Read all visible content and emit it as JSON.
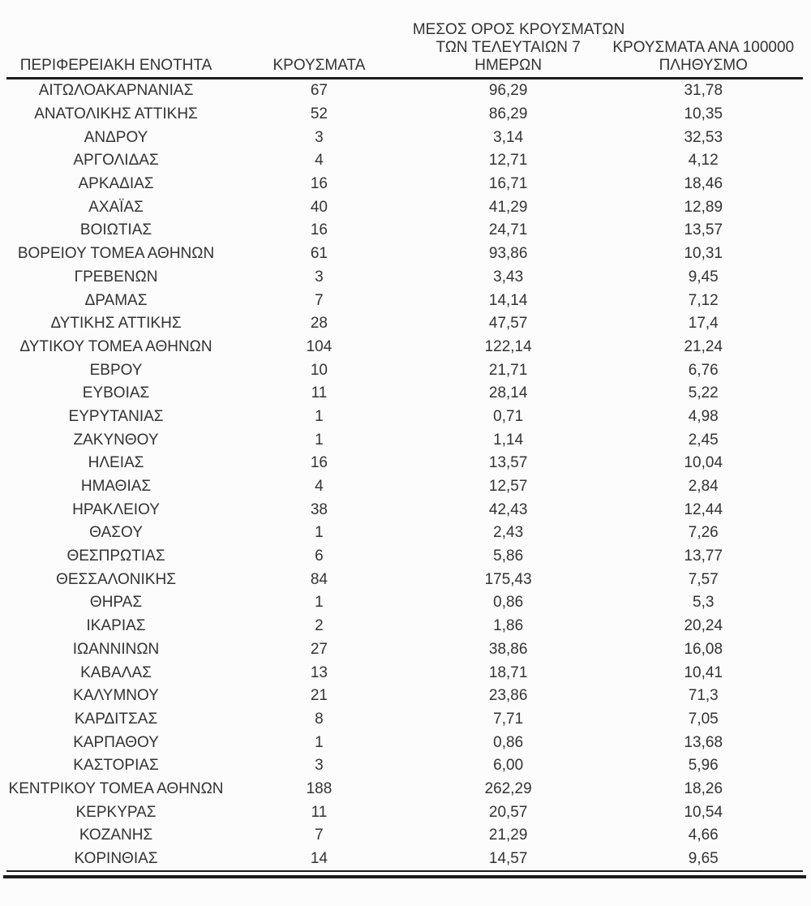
{
  "colors": {
    "background": "#fcfcfc",
    "text": "#333333",
    "rule_line": "#1c1c1c"
  },
  "header": {
    "col1": "ΠΕΡΙΦΕΡΕΙΑΚΗ ΕΝΟΤΗΤΑ",
    "col2": "ΚΡΟΥΣΜΑΤΑ",
    "col3_lines": [
      "ΜΕΣΟΣ ΟΡΟΣ ΚΡΟΥΣΜΑΤΩΝ",
      "ΤΩΝ ΤΕΛΕΥΤΑΙΩΝ 7",
      "ΗΜΕΡΩΝ"
    ],
    "col4_lines": [
      "ΚΡΟΥΣΜΑΤΑ ΑΝΑ 100000",
      "ΠΛΗΘΥΣΜΟ"
    ]
  },
  "chart_data": {
    "type": "table",
    "title": "",
    "columns": [
      "ΠΕΡΙΦΕΡΕΙΑΚΗ ΕΝΟΤΗΤΑ",
      "ΚΡΟΥΣΜΑΤΑ",
      "ΜΕΣΟΣ ΟΡΟΣ ΚΡΟΥΣΜΑΤΩΝ ΤΩΝ ΤΕΛΕΥΤΑΙΩΝ 7 ΗΜΕΡΩΝ",
      "ΚΡΟΥΣΜΑΤΑ ΑΝΑ 100000 ΠΛΗΘΥΣΜΟ"
    ],
    "rows": [
      [
        "ΑΙΤΩΛΟΑΚΑΡΝΑΝΙΑΣ",
        "67",
        "96,29",
        "31,78"
      ],
      [
        "ΑΝΑΤΟΛΙΚΗΣ ΑΤΤΙΚΗΣ",
        "52",
        "86,29",
        "10,35"
      ],
      [
        "ΑΝΔΡΟΥ",
        "3",
        "3,14",
        "32,53"
      ],
      [
        "ΑΡΓΟΛΙΔΑΣ",
        "4",
        "12,71",
        "4,12"
      ],
      [
        "ΑΡΚΑΔΙΑΣ",
        "16",
        "16,71",
        "18,46"
      ],
      [
        "ΑΧΑΪΑΣ",
        "40",
        "41,29",
        "12,89"
      ],
      [
        "ΒΟΙΩΤΙΑΣ",
        "16",
        "24,71",
        "13,57"
      ],
      [
        "ΒΟΡΕΙΟΥ ΤΟΜΕΑ ΑΘΗΝΩΝ",
        "61",
        "93,86",
        "10,31"
      ],
      [
        "ΓΡΕΒΕΝΩΝ",
        "3",
        "3,43",
        "9,45"
      ],
      [
        "ΔΡΑΜΑΣ",
        "7",
        "14,14",
        "7,12"
      ],
      [
        "ΔΥΤΙΚΗΣ ΑΤΤΙΚΗΣ",
        "28",
        "47,57",
        "17,4"
      ],
      [
        "ΔΥΤΙΚΟΥ ΤΟΜΕΑ ΑΘΗΝΩΝ",
        "104",
        "122,14",
        "21,24"
      ],
      [
        "ΕΒΡΟΥ",
        "10",
        "21,71",
        "6,76"
      ],
      [
        "ΕΥΒΟΙΑΣ",
        "11",
        "28,14",
        "5,22"
      ],
      [
        "ΕΥΡΥΤΑΝΙΑΣ",
        "1",
        "0,71",
        "4,98"
      ],
      [
        "ΖΑΚΥΝΘΟΥ",
        "1",
        "1,14",
        "2,45"
      ],
      [
        "ΗΛΕΙΑΣ",
        "16",
        "13,57",
        "10,04"
      ],
      [
        "ΗΜΑΘΙΑΣ",
        "4",
        "12,57",
        "2,84"
      ],
      [
        "ΗΡΑΚΛΕΙΟΥ",
        "38",
        "42,43",
        "12,44"
      ],
      [
        "ΘΑΣΟΥ",
        "1",
        "2,43",
        "7,26"
      ],
      [
        "ΘΕΣΠΡΩΤΙΑΣ",
        "6",
        "5,86",
        "13,77"
      ],
      [
        "ΘΕΣΣΑΛΟΝΙΚΗΣ",
        "84",
        "175,43",
        "7,57"
      ],
      [
        "ΘΗΡΑΣ",
        "1",
        "0,86",
        "5,3"
      ],
      [
        "ΙΚΑΡΙΑΣ",
        "2",
        "1,86",
        "20,24"
      ],
      [
        "ΙΩΑΝΝΙΝΩΝ",
        "27",
        "38,86",
        "16,08"
      ],
      [
        "ΚΑΒΑΛΑΣ",
        "13",
        "18,71",
        "10,41"
      ],
      [
        "ΚΑΛΥΜΝΟΥ",
        "21",
        "23,86",
        "71,3"
      ],
      [
        "ΚΑΡΔΙΤΣΑΣ",
        "8",
        "7,71",
        "7,05"
      ],
      [
        "ΚΑΡΠΑΘΟΥ",
        "1",
        "0,86",
        "13,68"
      ],
      [
        "ΚΑΣΤΟΡΙΑΣ",
        "3",
        "6,00",
        "5,96"
      ],
      [
        "ΚΕΝΤΡΙΚΟΥ ΤΟΜΕΑ ΑΘΗΝΩΝ",
        "188",
        "262,29",
        "18,26"
      ],
      [
        "ΚΕΡΚΥΡΑΣ",
        "11",
        "20,57",
        "10,54"
      ],
      [
        "ΚΟΖΑΝΗΣ",
        "7",
        "21,29",
        "4,66"
      ],
      [
        "ΚΟΡΙΝΘΙΑΣ",
        "14",
        "14,57",
        "9,65"
      ]
    ]
  }
}
